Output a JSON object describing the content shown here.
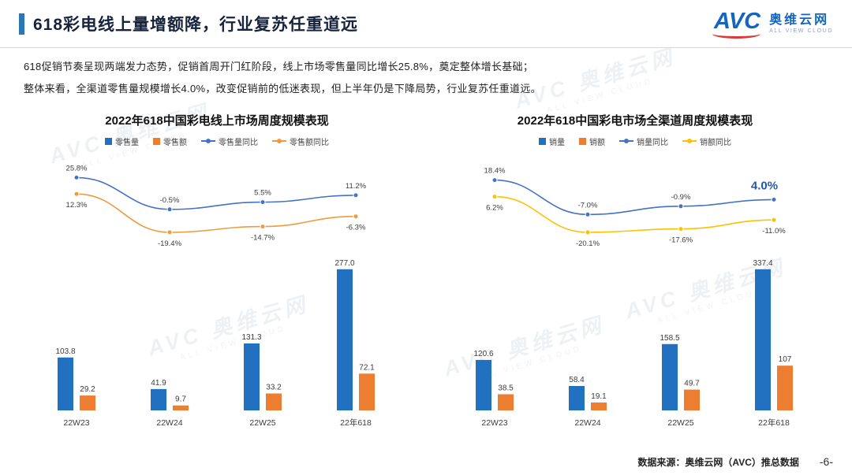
{
  "header": {
    "title": "618彩电线上量增额降，行业复苏任重道远",
    "logo": {
      "brand": "AVC",
      "name": "奥维云网",
      "subtitle": "ALL VIEW CLOUD"
    }
  },
  "intro": {
    "line1": "618促销节奏呈现两端发力态势，促销首周开门红阶段，线上市场零售量同比增长25.8%，奠定整体增长基础；",
    "line2": "整体来看，全渠道零售量规模增长4.0%，改变促销前的低迷表现，但上半年仍是下降局势，行业复苏任重道远。"
  },
  "watermark": {
    "line1": "AVC 奥维云网",
    "line2": "ALL VIEW CLOUD"
  },
  "footer": {
    "source": "数据来源：奥维云网（AVC）推总数据",
    "page": "-6-"
  },
  "colors": {
    "bar_blue": "#2171C0",
    "bar_orange": "#ED7D31",
    "line_blue": "#4472C4",
    "line_orange": "#ED9B3F",
    "line_yellow": "#FFC000",
    "accent": "#2E75B6",
    "emphasis": "#1F5AA8"
  },
  "chart_data": [
    {
      "type": "bar+line",
      "title": "2022年618中国彩电线上市场周度规模表现",
      "categories": [
        "22W23",
        "22W24",
        "22W25",
        "22年618"
      ],
      "legend_position": "top",
      "xlabel": "",
      "ylabel": "",
      "ylim_pct": [
        -26,
        30
      ],
      "bar_series": [
        {
          "name": "零售量",
          "color": "#2171C0",
          "values": [
            103.8,
            41.9,
            131.3,
            277.0
          ],
          "labels": [
            "103.8",
            "41.9",
            "131.3",
            "277.0"
          ]
        },
        {
          "name": "零售额",
          "color": "#ED7D31",
          "values": [
            29.2,
            9.7,
            33.2,
            72.1
          ],
          "labels": [
            "29.2",
            "9.7",
            "33.2",
            "72.1"
          ]
        }
      ],
      "line_series": [
        {
          "name": "零售量同比",
          "color": "#4472C4",
          "values_pct": [
            25.8,
            -0.5,
            5.5,
            11.2
          ],
          "labels": [
            "25.8%",
            "-0.5%",
            "5.5%",
            "11.2%"
          ],
          "label_position": "above",
          "emphasis_index": -1
        },
        {
          "name": "零售额同比",
          "color": "#ED9B3F",
          "values_pct": [
            12.3,
            -19.4,
            -14.7,
            -6.3
          ],
          "labels": [
            "12.3%",
            "-19.4%",
            "-14.7%",
            "-6.3%"
          ],
          "label_position": "below",
          "emphasis_index": -1
        }
      ]
    },
    {
      "type": "bar+line",
      "title": "2022年618中国彩电市场全渠道周度规模表现",
      "categories": [
        "22W23",
        "22W24",
        "22W25",
        "22年618"
      ],
      "legend_position": "top",
      "xlabel": "",
      "ylabel": "",
      "ylim_pct": [
        -26,
        24
      ],
      "bar_series": [
        {
          "name": "销量",
          "color": "#2171C0",
          "values": [
            120.6,
            58.4,
            158.5,
            337.4
          ],
          "labels": [
            "120.6",
            "58.4",
            "158.5",
            "337.4"
          ]
        },
        {
          "name": "销额",
          "color": "#ED7D31",
          "values": [
            38.5,
            19.1,
            49.7,
            107
          ],
          "labels": [
            "38.5",
            "19.1",
            "49.7",
            "107"
          ]
        }
      ],
      "line_series": [
        {
          "name": "销量同比",
          "color": "#4472C4",
          "values_pct": [
            18.4,
            -7.0,
            -0.9,
            4.0
          ],
          "labels": [
            "18.4%",
            "-7.0%",
            "-0.9%",
            "4.0%"
          ],
          "label_position": "above",
          "emphasis_index": 3
        },
        {
          "name": "销额同比",
          "color": "#FFC000",
          "values_pct": [
            6.2,
            -20.1,
            -17.6,
            -11.0
          ],
          "labels": [
            "6.2%",
            "-20.1%",
            "-17.6%",
            "-11.0%"
          ],
          "label_position": "below",
          "emphasis_index": -1
        }
      ]
    }
  ]
}
